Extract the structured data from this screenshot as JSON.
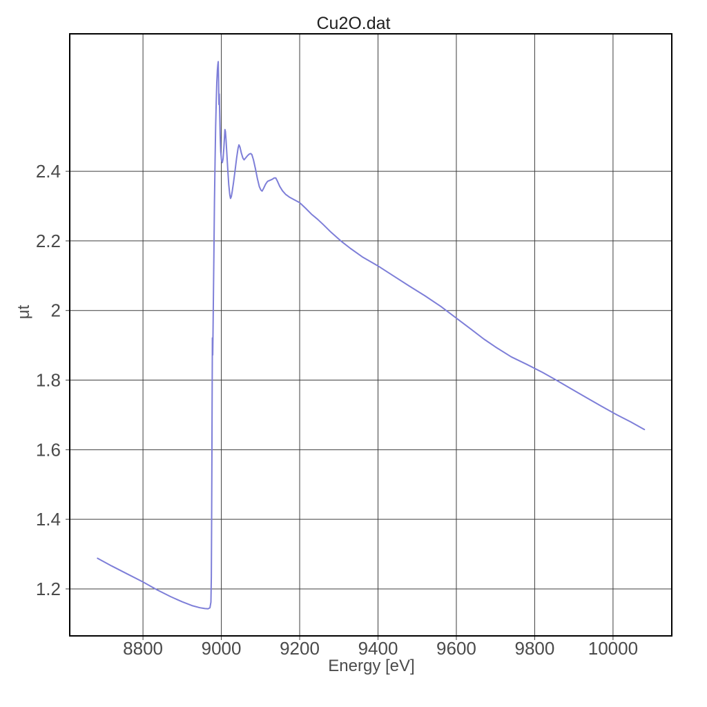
{
  "window": {
    "background": "#ffffff"
  },
  "chart_data": {
    "type": "line",
    "title": "Cu2O.dat",
    "xlabel": "Energy [eV]",
    "ylabel": "μt",
    "xlim": [
      8613,
      10150
    ],
    "ylim": [
      1.065,
      2.795
    ],
    "grid": true,
    "legend": "none",
    "x_ticks": [
      8800,
      9000,
      9200,
      9400,
      9600,
      9800,
      10000
    ],
    "x_tick_labels": [
      "8800",
      "9000",
      "9200",
      "9400",
      "9600",
      "9800",
      "10000"
    ],
    "y_ticks": [
      1.2,
      1.4,
      1.6,
      1.8,
      2.0,
      2.2,
      2.4
    ],
    "y_tick_labels": [
      "1.2",
      "1.4",
      "1.6",
      "1.8",
      "2",
      "2.2",
      "2.4"
    ],
    "colors": {
      "curve": "#7d7ed8",
      "grid": "#3d3d3d",
      "frame": "#000000",
      "tick_text": "#4a4a4a",
      "axis_label_text": "#4b4b4b",
      "title_text": "#1f1f1f"
    },
    "series": [
      {
        "name": "Cu2O.dat",
        "color": "#7d7ed8",
        "points": [
          [
            8684,
            1.288
          ],
          [
            8720,
            1.266
          ],
          [
            8760,
            1.243
          ],
          [
            8800,
            1.22
          ],
          [
            8835,
            1.198
          ],
          [
            8870,
            1.178
          ],
          [
            8900,
            1.163
          ],
          [
            8925,
            1.152
          ],
          [
            8945,
            1.146
          ],
          [
            8958,
            1.1435
          ],
          [
            8966,
            1.143
          ],
          [
            8971,
            1.146
          ],
          [
            8973.5,
            1.162
          ],
          [
            8974.5,
            1.235
          ],
          [
            8975.3,
            1.39
          ],
          [
            8976.0,
            1.57
          ],
          [
            8976.5,
            1.73
          ],
          [
            8976.9,
            1.86
          ],
          [
            8977.2,
            1.921
          ],
          [
            8978.0,
            1.872
          ],
          [
            8978.8,
            1.932
          ],
          [
            8979.7,
            2.02
          ],
          [
            8981.0,
            2.16
          ],
          [
            8982.5,
            2.31
          ],
          [
            8984.0,
            2.43
          ],
          [
            8985.5,
            2.525
          ],
          [
            8987.0,
            2.6
          ],
          [
            8988.5,
            2.655
          ],
          [
            8990.0,
            2.692
          ],
          [
            8991.0,
            2.706
          ],
          [
            8992.1,
            2.715
          ],
          [
            8993.1,
            2.66
          ],
          [
            8993.9,
            2.592
          ],
          [
            8994.7,
            2.622
          ],
          [
            8995.8,
            2.566
          ],
          [
            8997.0,
            2.503
          ],
          [
            8998.5,
            2.456
          ],
          [
            9000.5,
            2.432
          ],
          [
            9002.5,
            2.425
          ],
          [
            9004.5,
            2.436
          ],
          [
            9006.5,
            2.466
          ],
          [
            9008.2,
            2.5
          ],
          [
            9009.3,
            2.52
          ],
          [
            9010.5,
            2.514
          ],
          [
            9012.0,
            2.49
          ],
          [
            9014.0,
            2.452
          ],
          [
            9016.5,
            2.405
          ],
          [
            9019.0,
            2.362
          ],
          [
            9021.5,
            2.333
          ],
          [
            9023.5,
            2.322
          ],
          [
            9025.5,
            2.327
          ],
          [
            9028.0,
            2.343
          ],
          [
            9031.0,
            2.366
          ],
          [
            9035.0,
            2.401
          ],
          [
            9039.0,
            2.438
          ],
          [
            9042.5,
            2.465
          ],
          [
            9045.0,
            2.476
          ],
          [
            9047.5,
            2.47
          ],
          [
            9051.0,
            2.453
          ],
          [
            9055.0,
            2.438
          ],
          [
            9058.0,
            2.433
          ],
          [
            9062.0,
            2.438
          ],
          [
            9067.0,
            2.445
          ],
          [
            9072.0,
            2.45
          ],
          [
            9075.0,
            2.451
          ],
          [
            9078.0,
            2.448
          ],
          [
            9082.0,
            2.433
          ],
          [
            9087.0,
            2.408
          ],
          [
            9092.0,
            2.379
          ],
          [
            9097.0,
            2.356
          ],
          [
            9101.0,
            2.346
          ],
          [
            9104.0,
            2.343
          ],
          [
            9108.0,
            2.351
          ],
          [
            9113.0,
            2.363
          ],
          [
            9118.0,
            2.371
          ],
          [
            9124.0,
            2.374
          ],
          [
            9130.0,
            2.377
          ],
          [
            9135.0,
            2.381
          ],
          [
            9139.0,
            2.381
          ],
          [
            9143.0,
            2.372
          ],
          [
            9149.0,
            2.357
          ],
          [
            9156.0,
            2.344
          ],
          [
            9164.0,
            2.334
          ],
          [
            9175.0,
            2.325
          ],
          [
            9188.0,
            2.317
          ],
          [
            9200.0,
            2.31
          ],
          [
            9215.0,
            2.294
          ],
          [
            9230.0,
            2.277
          ],
          [
            9246.0,
            2.262
          ],
          [
            9260.0,
            2.247
          ],
          [
            9280.0,
            2.225
          ],
          [
            9305.0,
            2.2
          ],
          [
            9330.0,
            2.178
          ],
          [
            9360.0,
            2.154
          ],
          [
            9400.0,
            2.128
          ],
          [
            9440.0,
            2.099
          ],
          [
            9480.0,
            2.07
          ],
          [
            9520.0,
            2.042
          ],
          [
            9560.0,
            2.012
          ],
          [
            9600.0,
            1.978
          ],
          [
            9640.0,
            1.944
          ],
          [
            9670.0,
            1.918
          ],
          [
            9700.0,
            1.895
          ],
          [
            9740.0,
            1.867
          ],
          [
            9780.0,
            1.845
          ],
          [
            9820.0,
            1.822
          ],
          [
            9855.0,
            1.8
          ],
          [
            9890.0,
            1.777
          ],
          [
            9930.0,
            1.751
          ],
          [
            9970.0,
            1.725
          ],
          [
            10010.0,
            1.7
          ],
          [
            10045.0,
            1.68
          ],
          [
            10080.0,
            1.658
          ]
        ]
      }
    ]
  }
}
